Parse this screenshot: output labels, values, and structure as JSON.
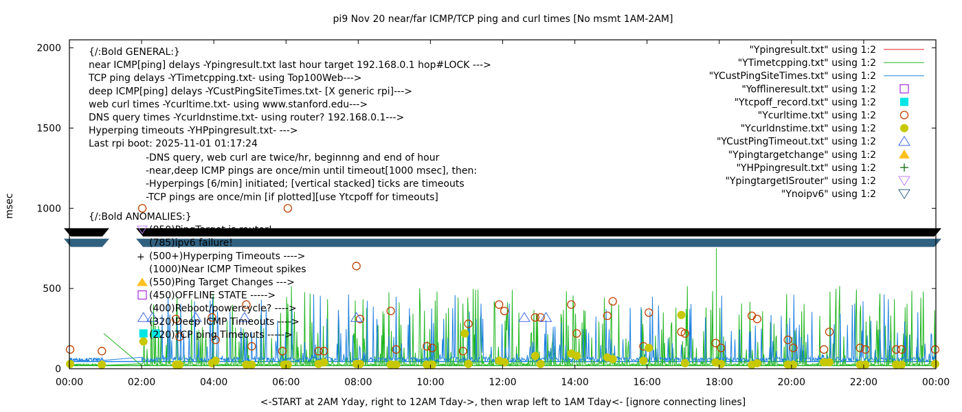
{
  "chart_data": {
    "type": "line",
    "title": "pi9 Nov 20  near/far ICMP/TCP ping and curl times [No msmt 1AM-2AM]",
    "xlabel": "<-START at 2AM Yday, right to 12AM Tday->, then wrap left to 1AM Tday<- [ignore connecting lines]",
    "ylabel": "msec",
    "xlim_hours": [
      0,
      24
    ],
    "ylim": [
      0,
      2050
    ],
    "x_ticks": [
      "00:00",
      "02:00",
      "04:00",
      "06:00",
      "08:00",
      "10:00",
      "12:00",
      "14:00",
      "16:00",
      "18:00",
      "20:00",
      "22:00",
      "00:00"
    ],
    "x_tick_hours": [
      0,
      2,
      4,
      6,
      8,
      10,
      12,
      14,
      16,
      18,
      20,
      22,
      24
    ],
    "y_ticks": [
      0,
      500,
      1000,
      1500,
      2000
    ],
    "legend_position": "top-right",
    "legend": [
      {
        "label": "\"Ypingresult.txt\" using 1:2",
        "style": "line",
        "color": "#e41a1c"
      },
      {
        "label": "\"YTimetcpping.txt\" using 1:2",
        "style": "line",
        "color": "#1fb51f"
      },
      {
        "label": "\"YCustPingSiteTimes.txt\" using 1:2",
        "style": "line",
        "color": "#1a7fe0"
      },
      {
        "label": "\"Yofflineresult.txt\" using 1:2",
        "style": "open-square",
        "color": "#9400d3"
      },
      {
        "label": "\"Ytcpoff_record.txt\" using 1:2",
        "style": "filled-square",
        "color": "#00e5e5"
      },
      {
        "label": "\"Ycurltime.txt\" using 1:2",
        "style": "open-circle",
        "color": "#c04000"
      },
      {
        "label": "\"Ycurldnstime.txt\" using 1:2",
        "style": "filled-circle",
        "color": "#c8c800"
      },
      {
        "label": "\"YCustPingTimeout.txt\" using 1:2",
        "style": "open-triangle",
        "color": "#4169e1"
      },
      {
        "label": "\"Ypingtargetchange\" using 1:2",
        "style": "filled-triangle",
        "color": "#ffc020"
      },
      {
        "label": "\"YHPpingresult.txt\" using 1:2",
        "style": "plus",
        "color": "#006400"
      },
      {
        "label": "\"YpingtargetISrouter\" using 1:2",
        "style": "open-down-triangle",
        "color": "#c080ff"
      },
      {
        "label": "\"Ynoipv6\" using 1:2",
        "style": "open-down-triangle",
        "color": "#306080"
      }
    ],
    "annotations_general": [
      "{/:Bold GENERAL:}",
      "near ICMP[ping] delays -Ypingresult.txt last hour target 192.168.0.1 hop#LOCK --->",
      "TCP ping delays -YTimetcpping.txt- using Top100Web--->",
      "deep ICMP[ping] delays -YCustPingSiteTimes.txt- [X generic rpi]--->",
      "web curl times -Ycurltime.txt- using www.stanford.edu--->",
      "DNS query times -Ycurldnstime.txt- using router? 192.168.0.1--->",
      "Hyperping timeouts -YHPpingresult.txt- --->",
      "Last rpi boot: 2025-11-01 01:17:24"
    ],
    "annotations_notes": [
      "-DNS query, web curl are twice/hr, beginnng and end of hour",
      "-near,deep ICMP pings are once/min until timeout[1000 msec], then:",
      "  -Hyperpings [6/min] initiated; [vertical stacked] ticks are timeouts",
      "-TCP pings are once/min [if plotted][use Ytcpoff for timeouts]"
    ],
    "annotations_anomalies": [
      "{/:Bold ANOMALIES:}",
      "(850)PingTarget is router!",
      "(785)ipv6 failure!",
      "(500+)Hyperping Timeouts ---->",
      "(1000)Near ICMP Timeout spikes",
      "(550)Ping Target Changes --->",
      "(450)OFFLINE STATE ----->",
      "(400)Reboot/powercycle? ---->",
      "(320)Deep ICMP Timeouts ---->",
      "(220)TCP ping Timeouts ----->"
    ],
    "series": [
      {
        "name": "YpingtargetISrouter",
        "y": 850,
        "segments_hours": [
          [
            0,
            0.95
          ],
          [
            2.0,
            24
          ]
        ]
      },
      {
        "name": "Ynoipv6",
        "y": 785,
        "segments_hours": [
          [
            0,
            0.95
          ],
          [
            2.0,
            24
          ]
        ]
      },
      {
        "name": "Ycurltime",
        "points": [
          [
            0.02,
            120
          ],
          [
            0.9,
            110
          ],
          [
            2.02,
            1000
          ],
          [
            2.95,
            310
          ],
          [
            3.05,
            200
          ],
          [
            3.95,
            320
          ],
          [
            4.05,
            180
          ],
          [
            4.9,
            400
          ],
          [
            5.05,
            140
          ],
          [
            5.9,
            110
          ],
          [
            6.05,
            1000
          ],
          [
            6.9,
            110
          ],
          [
            7.05,
            110
          ],
          [
            7.95,
            640
          ],
          [
            8.05,
            310
          ],
          [
            8.9,
            360
          ],
          [
            9.05,
            120
          ],
          [
            9.9,
            140
          ],
          [
            10.05,
            130
          ],
          [
            10.9,
            110
          ],
          [
            11.05,
            280
          ],
          [
            11.9,
            400
          ],
          [
            12.05,
            360
          ],
          [
            12.9,
            320
          ],
          [
            13.05,
            320
          ],
          [
            13.9,
            400
          ],
          [
            14.05,
            220
          ],
          [
            14.9,
            330
          ],
          [
            15.05,
            420
          ],
          [
            15.9,
            140
          ],
          [
            16.05,
            350
          ],
          [
            16.95,
            230
          ],
          [
            17.05,
            220
          ],
          [
            17.9,
            160
          ],
          [
            18.05,
            130
          ],
          [
            18.9,
            330
          ],
          [
            19.05,
            310
          ],
          [
            19.9,
            180
          ],
          [
            20.05,
            130
          ],
          [
            20.9,
            120
          ],
          [
            21.05,
            230
          ],
          [
            21.9,
            130
          ],
          [
            22.05,
            120
          ],
          [
            22.9,
            120
          ],
          [
            23.05,
            120
          ],
          [
            23.98,
            120
          ]
        ]
      },
      {
        "name": "Ycurldnstime",
        "points": [
          [
            0.02,
            30
          ],
          [
            0.9,
            25
          ],
          [
            2.05,
            170
          ],
          [
            2.95,
            25
          ],
          [
            3.05,
            25
          ],
          [
            3.95,
            35
          ],
          [
            4.05,
            50
          ],
          [
            4.9,
            25
          ],
          [
            5.05,
            25
          ],
          [
            5.95,
            25
          ],
          [
            6.05,
            25
          ],
          [
            6.9,
            30
          ],
          [
            7.05,
            40
          ],
          [
            7.95,
            30
          ],
          [
            8.05,
            30
          ],
          [
            8.9,
            25
          ],
          [
            9.05,
            25
          ],
          [
            9.9,
            25
          ],
          [
            10.05,
            25
          ],
          [
            10.95,
            220
          ],
          [
            11.05,
            30
          ],
          [
            11.9,
            50
          ],
          [
            12.05,
            40
          ],
          [
            12.9,
            80
          ],
          [
            13.05,
            30
          ],
          [
            13.9,
            95
          ],
          [
            14.05,
            80
          ],
          [
            14.9,
            70
          ],
          [
            15.05,
            60
          ],
          [
            15.9,
            50
          ],
          [
            16.05,
            130
          ],
          [
            16.95,
            335
          ],
          [
            17.05,
            35
          ],
          [
            17.9,
            40
          ],
          [
            18.05,
            30
          ],
          [
            18.9,
            25
          ],
          [
            19.05,
            35
          ],
          [
            19.9,
            25
          ],
          [
            20.05,
            25
          ],
          [
            20.9,
            40
          ],
          [
            21.05,
            40
          ],
          [
            21.9,
            25
          ],
          [
            22.05,
            25
          ],
          [
            22.9,
            25
          ],
          [
            23.05,
            25
          ],
          [
            23.98,
            30
          ]
        ]
      },
      {
        "name": "YCustPingTimeout",
        "points": [
          [
            2.05,
            320
          ],
          [
            2.3,
            320
          ],
          [
            3.5,
            320
          ],
          [
            4.85,
            320
          ],
          [
            7.95,
            320
          ],
          [
            12.6,
            320
          ],
          [
            13.2,
            320
          ]
        ]
      },
      {
        "name": "Ytcpoff_record",
        "points": [
          [
            2.05,
            220
          ],
          [
            2.4,
            220
          ]
        ]
      },
      {
        "name": "YTimetcpping",
        "description": "TCP ping delays, baseline ~20 msec with frequent spikes up to ~750 msec (peak near 17:55)"
      },
      {
        "name": "YCustPingSiteTimes",
        "description": "deep ICMP delays, baseline ~50 msec with spikes up to ~520 msec"
      },
      {
        "name": "Ypingresult",
        "description": "near ICMP delays, not visibly plotted"
      }
    ]
  }
}
